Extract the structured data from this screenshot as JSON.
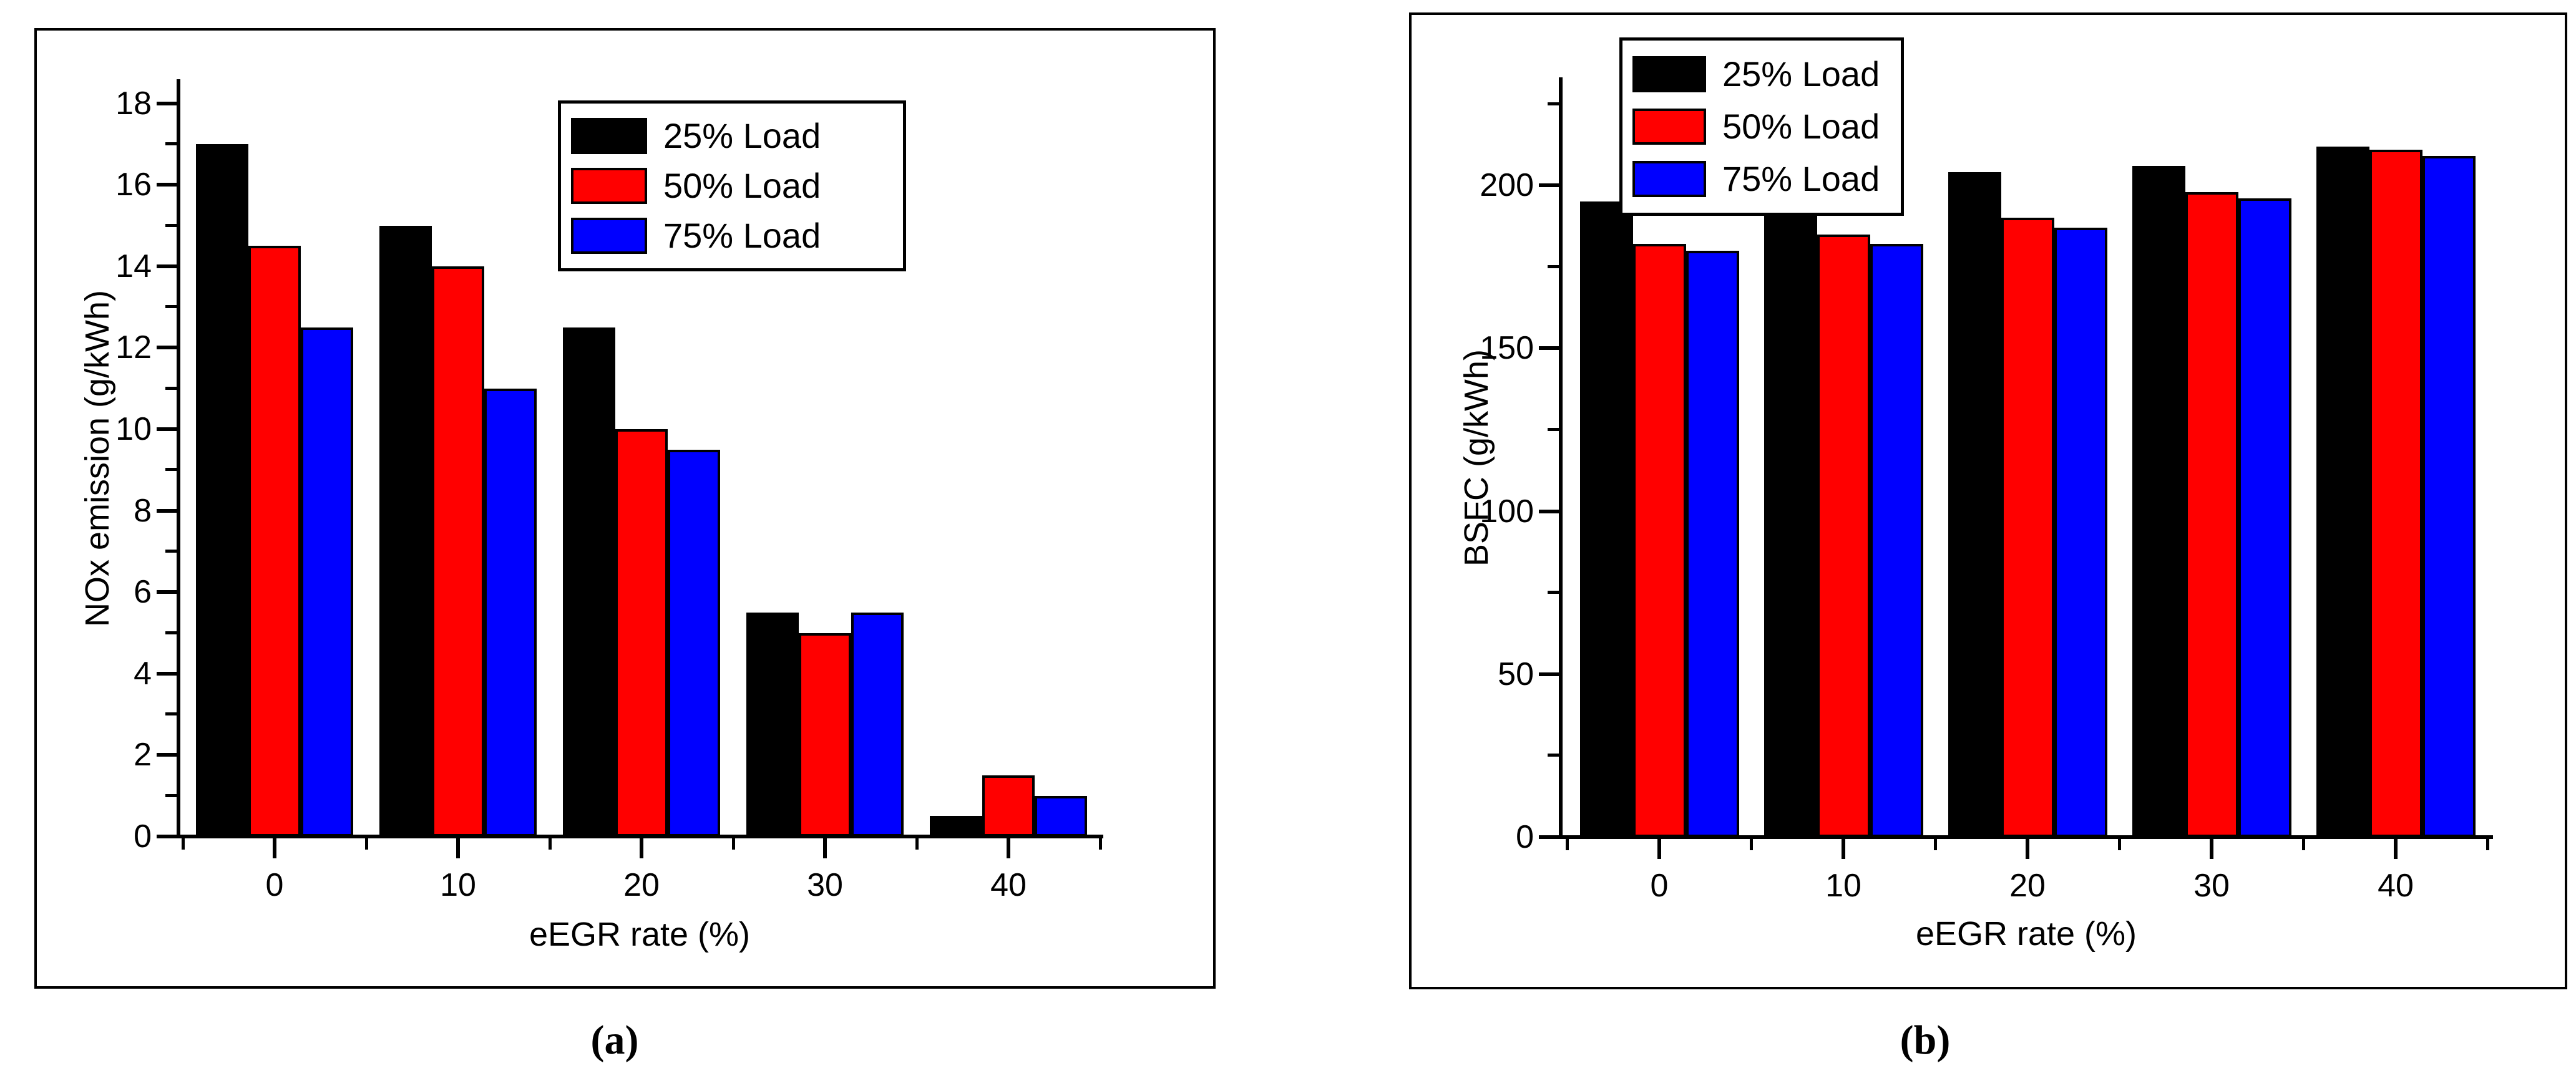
{
  "figure": {
    "captions": [
      "(a)",
      "(b)"
    ]
  },
  "legend": {
    "entries": [
      "25% Load",
      "50% Load",
      "75% Load"
    ]
  },
  "colors": {
    "load25": "#000000",
    "load50": "#ff0000",
    "load75": "#0000ff",
    "axis": "#000000",
    "background": "#ffffff"
  },
  "chart_data": [
    {
      "type": "bar",
      "title": "",
      "xlabel": "eEGR rate (%)",
      "ylabel": "NOx emission (g/kWh)",
      "categories": [
        "0",
        "10",
        "20",
        "30",
        "40"
      ],
      "series": [
        {
          "name": "25% Load",
          "color": "#000000",
          "values": [
            17,
            15,
            12.5,
            5.5,
            0.5
          ]
        },
        {
          "name": "50% Load",
          "color": "#ff0000",
          "values": [
            14.5,
            14,
            10,
            5,
            1.5
          ]
        },
        {
          "name": "75% Load",
          "color": "#0000ff",
          "values": [
            12.5,
            11,
            9.5,
            5.5,
            1
          ]
        }
      ],
      "ylim": [
        0,
        18.6
      ],
      "yticks_major": [
        0,
        2,
        4,
        6,
        8,
        10,
        12,
        14,
        16,
        18
      ],
      "yticks_minor": [
        1,
        3,
        5,
        7,
        9,
        11,
        13,
        15,
        17
      ],
      "grid": false,
      "legend_position": "inside-top-right"
    },
    {
      "type": "bar",
      "title": "",
      "xlabel": "eEGR rate (%)",
      "ylabel": "BSFC (g/kWh)",
      "categories": [
        "0",
        "10",
        "20",
        "30",
        "40"
      ],
      "series": [
        {
          "name": "25% Load",
          "color": "#000000",
          "values": [
            195,
            198,
            204,
            206,
            212
          ]
        },
        {
          "name": "50% Load",
          "color": "#ff0000",
          "values": [
            182,
            185,
            190,
            198,
            211
          ]
        },
        {
          "name": "75% Load",
          "color": "#0000ff",
          "values": [
            180,
            182,
            187,
            196,
            209
          ]
        }
      ],
      "ylim": [
        0,
        233
      ],
      "yticks_major": [
        0,
        50,
        100,
        150,
        200
      ],
      "yticks_minor": [
        25,
        75,
        125,
        175,
        225
      ],
      "grid": false,
      "legend_position": "inside-top-left"
    }
  ]
}
